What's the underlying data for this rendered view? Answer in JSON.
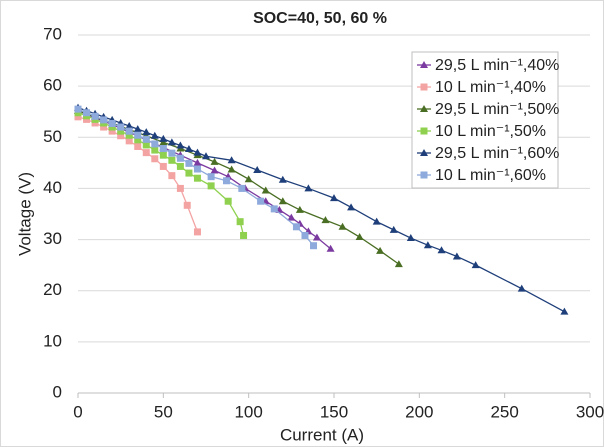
{
  "chart_data": {
    "type": "line",
    "title": "SOC=40, 50, 60 %",
    "x_label": "Current (A)",
    "y_label": "Voltage (V)",
    "xlim": [
      0,
      300
    ],
    "xticks": [
      0,
      50,
      100,
      150,
      200,
      250,
      300
    ],
    "ylim": [
      0,
      70
    ],
    "yticks": [
      0,
      10,
      20,
      30,
      40,
      50,
      60,
      70
    ],
    "grid": true,
    "legend": "upper right",
    "series": [
      {
        "name": "29,5 L min⁻¹,40%",
        "color": "#7b3aa0",
        "marker": "triangle",
        "x": [
          0,
          10,
          20,
          30,
          40,
          50,
          60,
          70,
          80,
          88,
          98,
          110,
          118,
          125,
          130,
          135,
          140,
          148
        ],
        "values": [
          55.2,
          53.8,
          52.5,
          51,
          49.5,
          48,
          46.5,
          45,
          43.5,
          42.3,
          40,
          37.5,
          35.8,
          34.3,
          33.1,
          31.6,
          30.4,
          28.2
        ]
      },
      {
        "name": "10 L min⁻¹,40%",
        "color": "#f4a3a3",
        "marker": "square",
        "x": [
          0,
          5,
          10,
          15,
          20,
          25,
          30,
          35,
          40,
          45,
          50,
          55,
          60,
          64,
          70
        ],
        "values": [
          54,
          53.5,
          52.8,
          52,
          51.2,
          50.3,
          49.3,
          48.2,
          47,
          45.8,
          44.3,
          42.5,
          40,
          36.7,
          31.5
        ]
      },
      {
        "name": "29,5 L min⁻¹,50%",
        "color": "#4a6e23",
        "marker": "triangle",
        "x": [
          0,
          10,
          20,
          30,
          40,
          50,
          60,
          70,
          80,
          90,
          100,
          110,
          120,
          130,
          145,
          155,
          165,
          177,
          188
        ],
        "values": [
          55.2,
          54,
          52.8,
          51.5,
          50.3,
          49,
          47.8,
          46.5,
          45.2,
          43.7,
          41.8,
          39.6,
          37.5,
          35.8,
          33.8,
          32.5,
          30.5,
          27.8,
          25.2
        ]
      },
      {
        "name": "10 L min⁻¹,50%",
        "color": "#8fd14f",
        "marker": "square",
        "x": [
          0,
          5,
          10,
          15,
          20,
          25,
          30,
          35,
          40,
          45,
          50,
          55,
          60,
          65,
          70,
          78,
          88,
          95,
          97
        ],
        "values": [
          54.8,
          54.2,
          53.5,
          52.8,
          52,
          51.2,
          50.4,
          49.5,
          48.5,
          47.5,
          46.5,
          45.5,
          44.3,
          43,
          42,
          40.5,
          37.5,
          33.5,
          30.8
        ]
      },
      {
        "name": "29,5 L min⁻¹,60%",
        "color": "#1f3f7a",
        "marker": "triangle",
        "x": [
          0,
          5,
          10,
          15,
          20,
          25,
          30,
          35,
          40,
          45,
          50,
          55,
          60,
          65,
          70,
          75,
          90,
          105,
          120,
          135,
          150,
          160,
          175,
          185,
          195,
          205,
          213,
          222,
          233,
          260,
          285
        ],
        "values": [
          55.8,
          55.2,
          54.6,
          54,
          53.4,
          52.8,
          52.2,
          51.6,
          51,
          50.3,
          49.7,
          49,
          48.4,
          47.7,
          47,
          46.3,
          45.5,
          43.6,
          41.7,
          40,
          38.1,
          36.3,
          33.5,
          31.9,
          30.3,
          28.9,
          27.9,
          26.7,
          25,
          20.4,
          15.9
        ]
      },
      {
        "name": "10 L min⁻¹,60%",
        "color": "#8ea9db",
        "marker": "square",
        "x": [
          0,
          5,
          10,
          15,
          20,
          25,
          30,
          35,
          40,
          45,
          50,
          55,
          60,
          65,
          70,
          78,
          87,
          96,
          107,
          115,
          128,
          133,
          138
        ],
        "values": [
          55.5,
          54.8,
          54.1,
          53.4,
          52.7,
          52,
          51.2,
          50.4,
          49.6,
          48.7,
          47.8,
          46.9,
          45.9,
          44.9,
          43.8,
          42.3,
          41.5,
          40,
          37.5,
          36,
          32.5,
          30.8,
          28.8
        ]
      }
    ]
  }
}
